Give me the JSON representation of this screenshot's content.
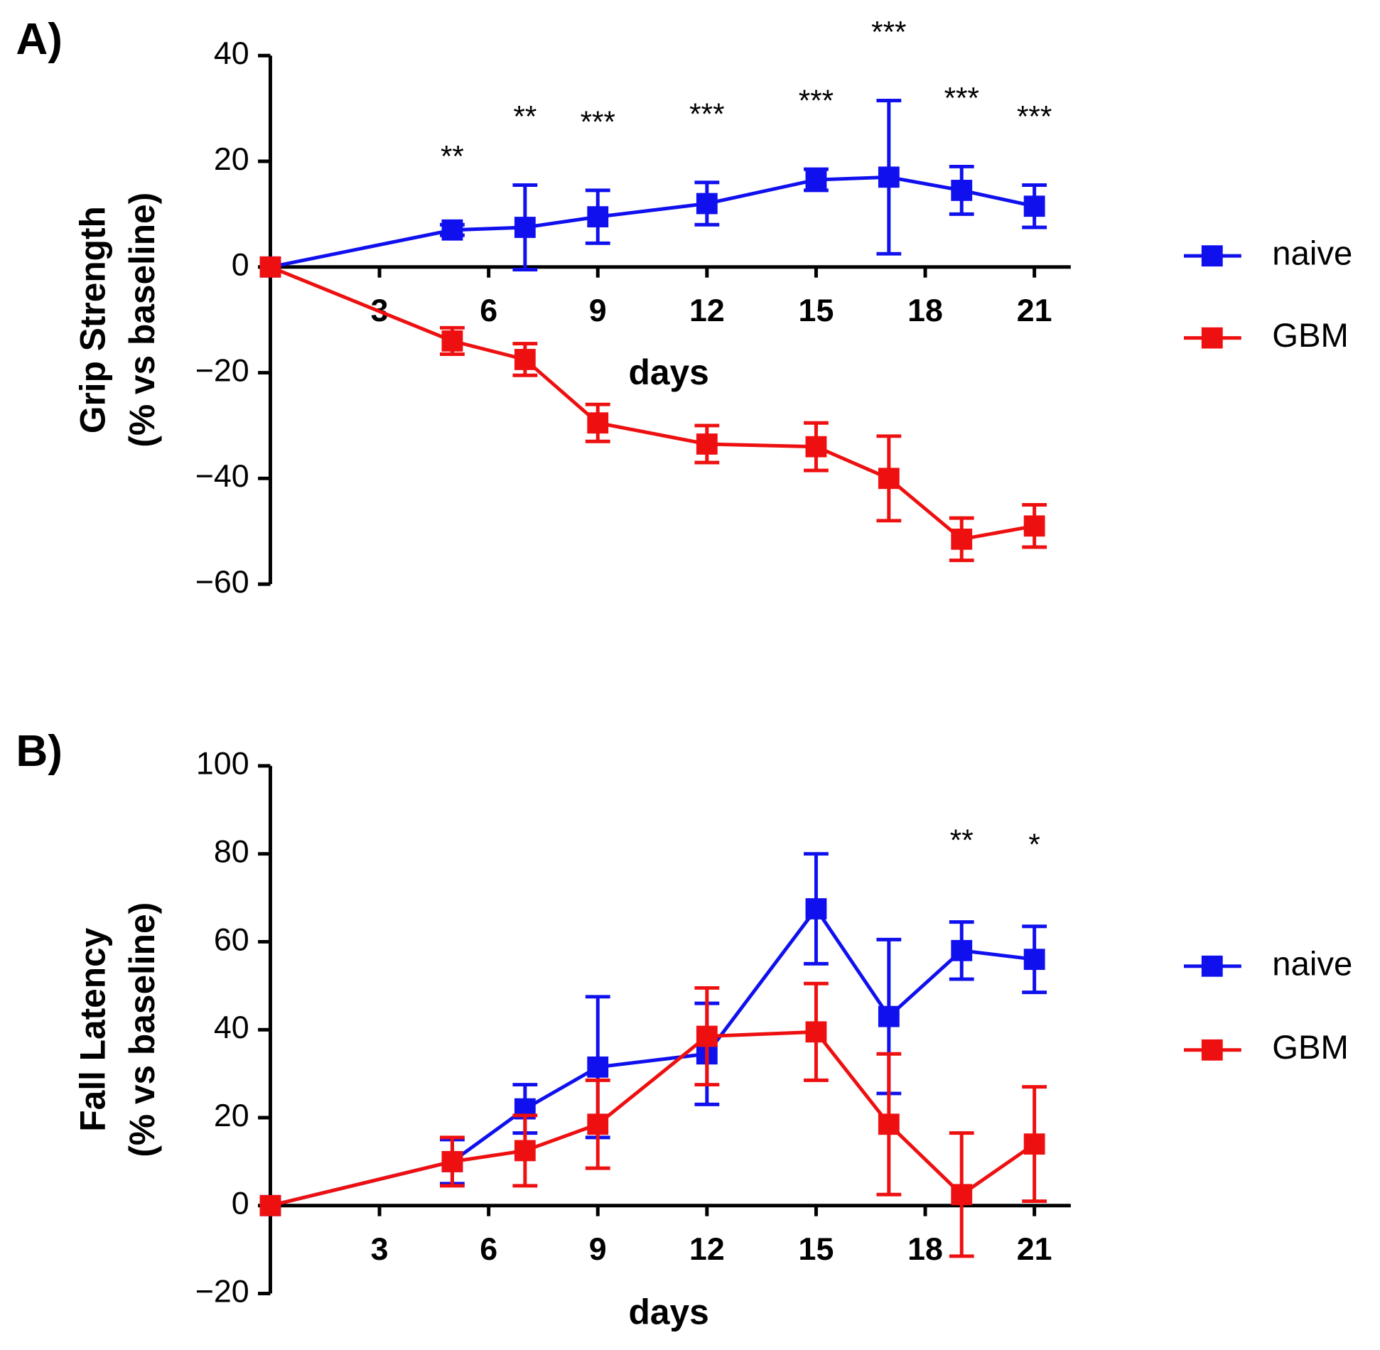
{
  "chart_data": [
    {
      "type": "line",
      "panel": "A)",
      "ylabel": [
        "Grip Strength",
        "(% vs baseline)"
      ],
      "xlabel": "days",
      "x": [
        0,
        5,
        7,
        9,
        12,
        15,
        17,
        19,
        21
      ],
      "xlim": [
        0,
        22
      ],
      "xticks": [
        3,
        6,
        9,
        12,
        15,
        18,
        21
      ],
      "ylim": [
        -60,
        40
      ],
      "yticks": [
        {
          "value": -60,
          "label": "−60"
        },
        {
          "value": -40,
          "label": "−40"
        },
        {
          "value": -20,
          "label": "−20"
        },
        0,
        20,
        40
      ],
      "series": [
        {
          "name": "naive",
          "color": "#1010ee",
          "values": [
            0,
            7,
            7.5,
            9.5,
            12,
            16.5,
            17,
            14.5,
            11.5
          ],
          "errors": [
            0,
            1,
            8,
            5,
            4,
            2,
            14.5,
            4.5,
            4
          ]
        },
        {
          "name": "GBM",
          "color": "#ee1010",
          "values": [
            0,
            -14,
            -17.5,
            -29.5,
            -33.5,
            -34,
            -40,
            -51.5,
            -49
          ],
          "errors": [
            0,
            2.5,
            3,
            3.5,
            3.5,
            4.5,
            8,
            4,
            4
          ]
        }
      ],
      "annotations": [
        {
          "x": 5,
          "text": "**"
        },
        {
          "x": 7,
          "text": "**"
        },
        {
          "x": 9,
          "text": "***"
        },
        {
          "x": 12,
          "text": "***"
        },
        {
          "x": 15,
          "text": "***"
        },
        {
          "x": 17,
          "text": "***"
        },
        {
          "x": 19,
          "text": "***"
        },
        {
          "x": 21,
          "text": "***"
        }
      ]
    },
    {
      "type": "line",
      "panel": "B)",
      "ylabel": [
        "Fall Latency",
        "(% vs baseline)"
      ],
      "xlabel": "days",
      "x": [
        0,
        5,
        7,
        9,
        12,
        15,
        17,
        19,
        21
      ],
      "xlim": [
        0,
        22
      ],
      "xticks": [
        3,
        6,
        9,
        12,
        15,
        18,
        21
      ],
      "ylim": [
        -20,
        100
      ],
      "yticks": [
        {
          "value": -20,
          "label": "−20"
        },
        0,
        20,
        40,
        60,
        80,
        100
      ],
      "series": [
        {
          "name": "naive",
          "color": "#1010ee",
          "values": [
            0,
            10,
            22,
            31.5,
            34.5,
            67.5,
            43,
            58,
            56
          ],
          "errors": [
            0,
            5,
            5.5,
            16,
            11.5,
            12.5,
            17.5,
            6.5,
            7.5
          ]
        },
        {
          "name": "GBM",
          "color": "#ee1010",
          "values": [
            0,
            10,
            12.5,
            18.5,
            38.5,
            39.5,
            18.5,
            2.5,
            14
          ],
          "errors": [
            0,
            5.5,
            8,
            10,
            11,
            11,
            16,
            14,
            13
          ]
        }
      ],
      "annotations": [
        {
          "x": 19,
          "text": "**"
        },
        {
          "x": 21,
          "text": "*"
        }
      ]
    }
  ]
}
